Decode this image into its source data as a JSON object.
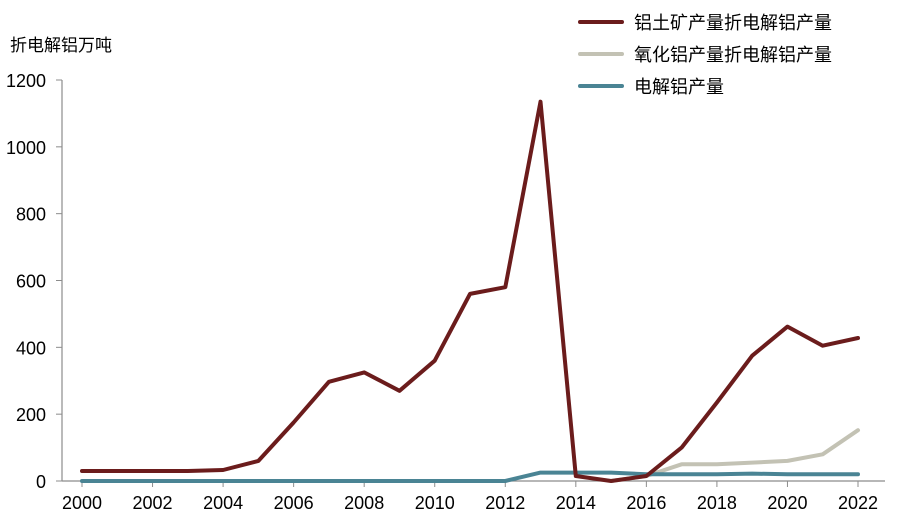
{
  "chart_data": {
    "type": "line",
    "ylabel": "折电解铝万吨",
    "ylim": [
      0,
      1200
    ],
    "yticks": [
      0,
      200,
      400,
      600,
      800,
      1000,
      1200
    ],
    "x": [
      2000,
      2001,
      2002,
      2003,
      2004,
      2005,
      2006,
      2007,
      2008,
      2009,
      2010,
      2011,
      2012,
      2013,
      2014,
      2015,
      2016,
      2017,
      2018,
      2019,
      2020,
      2021,
      2022
    ],
    "xticks": [
      "2000",
      "2002",
      "2004",
      "2006",
      "2008",
      "2010",
      "2012",
      "2014",
      "2016",
      "2018",
      "2020",
      "2022"
    ],
    "legend_position": "top-right",
    "grid": false,
    "series": [
      {
        "name": "铝土矿产量折电解铝产量",
        "color": "#6b1c1c",
        "values": [
          30,
          30,
          30,
          30,
          33,
          60,
          175,
          297,
          325,
          270,
          360,
          560,
          580,
          1135,
          15,
          0,
          15,
          100,
          235,
          375,
          462,
          405,
          428
        ]
      },
      {
        "name": "氧化铝产量折电解铝产量",
        "color": "#c3c2b4",
        "values": [
          null,
          null,
          null,
          null,
          null,
          null,
          null,
          null,
          null,
          null,
          null,
          null,
          null,
          null,
          null,
          0,
          15,
          50,
          50,
          55,
          60,
          80,
          152
        ]
      },
      {
        "name": "电解铝产量",
        "color": "#4a8494",
        "values": [
          0,
          0,
          0,
          0,
          0,
          0,
          0,
          0,
          0,
          0,
          0,
          0,
          0,
          25,
          25,
          25,
          20,
          20,
          20,
          22,
          20,
          20,
          20
        ]
      }
    ]
  }
}
